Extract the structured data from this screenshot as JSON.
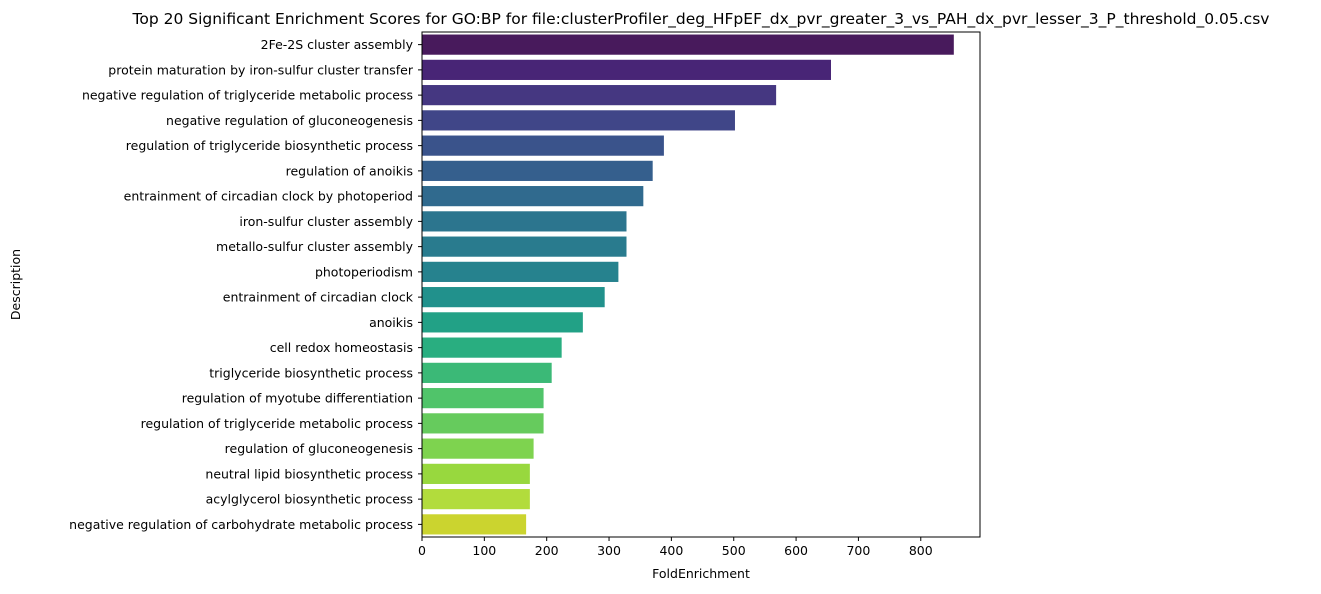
{
  "chart_data": {
    "type": "bar",
    "orientation": "horizontal",
    "title": "Top 20 Significant Enrichment Scores for GO:BP for file:clusterProfiler_deg_HFpEF_dx_pvr_greater_3_vs_PAH_dx_pvr_lesser_3_P_threshold_0.05.csv",
    "xlabel": "FoldEnrichment",
    "ylabel": "Description",
    "xlim": [
      0,
      895
    ],
    "xticks": [
      0,
      100,
      200,
      300,
      400,
      500,
      600,
      700,
      800
    ],
    "xtick_labels": [
      "0",
      "100",
      "200",
      "300",
      "400",
      "500",
      "600",
      "700",
      "800"
    ],
    "grid": false,
    "legend": "none",
    "colormap": "viridis",
    "categories": [
      "2Fe-2S cluster assembly",
      "protein maturation by iron-sulfur cluster transfer",
      "negative regulation of triglyceride metabolic process",
      "negative regulation of gluconeogenesis",
      "regulation of triglyceride biosynthetic process",
      "regulation of anoikis",
      "entrainment of circadian clock by photoperiod",
      "iron-sulfur cluster assembly",
      "metallo-sulfur cluster assembly",
      "photoperiodism",
      "entrainment of circadian clock",
      "anoikis",
      "cell redox homeostasis",
      "triglyceride biosynthetic process",
      "regulation of myotube differentiation",
      "regulation of triglyceride metabolic process",
      "regulation of gluconeogenesis",
      "neutral lipid biosynthetic process",
      "acylglycerol biosynthetic process",
      "negative regulation of carbohydrate metabolic process"
    ],
    "values": [
      853,
      656,
      568,
      502,
      388,
      370,
      355,
      328,
      328,
      315,
      293,
      258,
      224,
      208,
      195,
      195,
      179,
      173,
      173,
      167
    ],
    "colors": [
      "#481a5c",
      "#482576",
      "#453781",
      "#404688",
      "#3a538b",
      "#355f8d",
      "#306a8e",
      "#2c758e",
      "#297b8e",
      "#26828e",
      "#21918c",
      "#22a186",
      "#29ae80",
      "#3bb977",
      "#50c46a",
      "#66cb5d",
      "#7ed34f",
      "#98d83e",
      "#b2dc3c",
      "#cbd42f"
    ]
  }
}
